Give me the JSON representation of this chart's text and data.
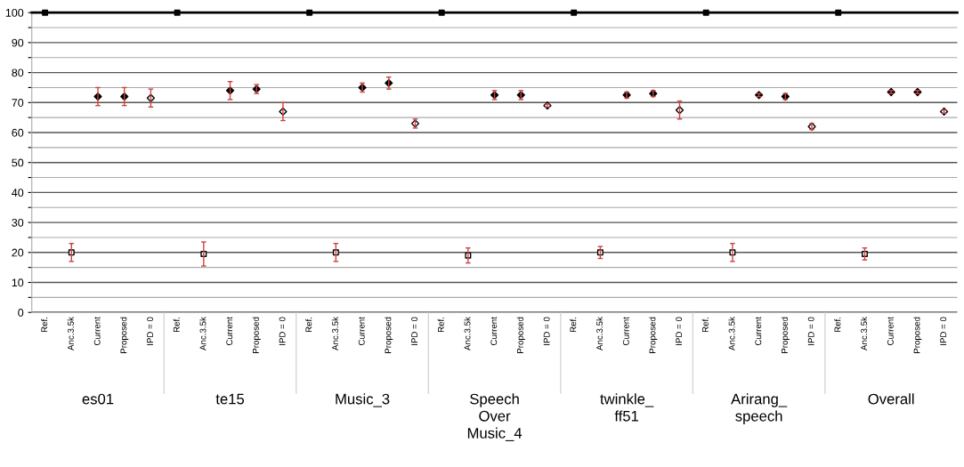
{
  "chart_data": {
    "type": "scatter",
    "categories": [
      "Ref.",
      "Anc.3.5k",
      "Current",
      "Proposed",
      "IPD = 0",
      "Ref.",
      "Anc.3.5k",
      "Current",
      "Proposed",
      "IPD = 0",
      "Ref.",
      "Anc.3.5k",
      "Current",
      "Proposed",
      "IPD = 0",
      "Ref.",
      "Anc.3.5k",
      "Current",
      "Proposed",
      "IPD = 0",
      "Ref.",
      "Anc.3.5k",
      "Current",
      "Proposed",
      "IPD = 0",
      "Ref.",
      "Anc.3.5k",
      "Current",
      "Proposed",
      "IPD = 0",
      "Ref.",
      "Anc.3.5k",
      "Current",
      "Proposed",
      "IPD = 0"
    ],
    "series": [
      {
        "color": "#000000",
        "marker": "square",
        "values": [
          100,
          null,
          null,
          null,
          null,
          100,
          null,
          null,
          null,
          null,
          100,
          null,
          null,
          null,
          null,
          100,
          null,
          null,
          null,
          null,
          100,
          null,
          null,
          null,
          null,
          100,
          null,
          null,
          null,
          null,
          100,
          null,
          null,
          null,
          null
        ],
        "errors": [
          0,
          null,
          null,
          null,
          null,
          0,
          null,
          null,
          null,
          null,
          0,
          null,
          null,
          null,
          null,
          0,
          null,
          null,
          null,
          null,
          0,
          null,
          null,
          null,
          null,
          0,
          null,
          null,
          null,
          null,
          0,
          null,
          null,
          null,
          null
        ]
      },
      {
        "color": "#ffffff",
        "marker": "square",
        "values": [
          null,
          20,
          null,
          null,
          null,
          null,
          19.5,
          null,
          null,
          null,
          null,
          20,
          null,
          null,
          null,
          null,
          19,
          null,
          null,
          null,
          null,
          20,
          null,
          null,
          null,
          null,
          20,
          null,
          null,
          null,
          null,
          19.5,
          null,
          null,
          null
        ],
        "errors": [
          null,
          3,
          null,
          null,
          null,
          null,
          4,
          null,
          null,
          null,
          null,
          3,
          null,
          null,
          null,
          null,
          2.5,
          null,
          null,
          null,
          null,
          2,
          null,
          null,
          null,
          null,
          3,
          null,
          null,
          null,
          null,
          2,
          null,
          null,
          null
        ]
      },
      {
        "color": "#000000",
        "marker": "diamond",
        "values": [
          null,
          null,
          72,
          null,
          null,
          null,
          null,
          74,
          null,
          null,
          null,
          null,
          75,
          null,
          null,
          null,
          null,
          72.5,
          null,
          null,
          null,
          null,
          72.5,
          null,
          null,
          null,
          null,
          72.5,
          null,
          null,
          null,
          null,
          73.5,
          null,
          null
        ],
        "errors": [
          null,
          null,
          3,
          null,
          null,
          null,
          null,
          3,
          null,
          null,
          null,
          null,
          1.5,
          null,
          null,
          null,
          null,
          1.5,
          null,
          null,
          null,
          null,
          1,
          null,
          null,
          null,
          null,
          0.5,
          null,
          null,
          null,
          null,
          0.5,
          null,
          null
        ]
      },
      {
        "color": "#000000",
        "marker": "diamond",
        "values": [
          null,
          null,
          null,
          72,
          null,
          null,
          null,
          null,
          74.5,
          null,
          null,
          null,
          null,
          76.5,
          null,
          null,
          null,
          null,
          72.5,
          null,
          null,
          null,
          null,
          73,
          null,
          null,
          null,
          null,
          72,
          null,
          null,
          null,
          null,
          73.5,
          null
        ],
        "errors": [
          null,
          null,
          null,
          3,
          null,
          null,
          null,
          null,
          1.5,
          null,
          null,
          null,
          null,
          2,
          null,
          null,
          null,
          null,
          1.5,
          null,
          null,
          null,
          null,
          1,
          null,
          null,
          null,
          null,
          1,
          null,
          null,
          null,
          null,
          0.5,
          null
        ]
      },
      {
        "color": "#ffffff",
        "marker": "diamond",
        "values": [
          null,
          null,
          null,
          null,
          71.5,
          null,
          null,
          null,
          null,
          67,
          null,
          null,
          null,
          null,
          63,
          null,
          null,
          null,
          null,
          69,
          null,
          null,
          null,
          null,
          67.5,
          null,
          null,
          null,
          null,
          62,
          null,
          null,
          null,
          null,
          67
        ],
        "errors": [
          null,
          null,
          null,
          null,
          3,
          null,
          null,
          null,
          null,
          3,
          null,
          null,
          null,
          null,
          1.5,
          null,
          null,
          null,
          null,
          0.5,
          null,
          null,
          null,
          null,
          3,
          null,
          null,
          null,
          null,
          1,
          null,
          null,
          null,
          null,
          0.5
        ]
      }
    ],
    "annotations": [
      "es01",
      "te15",
      "Music_3",
      "Speech\nOver\nMusic_4",
      "twinkle_\nff51",
      "Arirang_\nspeech",
      "Overall"
    ],
    "ylim": [
      0,
      100
    ],
    "yticks": [
      0,
      {
        "value": 5,
        "label": null
      },
      10,
      {
        "value": 15,
        "label": null
      },
      20,
      {
        "value": 25,
        "label": null
      },
      30,
      {
        "value": 35,
        "label": null
      },
      40,
      {
        "value": 45,
        "label": null
      },
      50,
      {
        "value": 55,
        "label": null
      },
      60,
      {
        "value": 65,
        "label": null
      },
      70,
      {
        "value": 75,
        "label": null
      },
      80,
      {
        "value": 85,
        "label": null
      },
      90,
      {
        "value": 95,
        "label": null
      },
      100
    ],
    "grid": "y",
    "legend": false
  }
}
